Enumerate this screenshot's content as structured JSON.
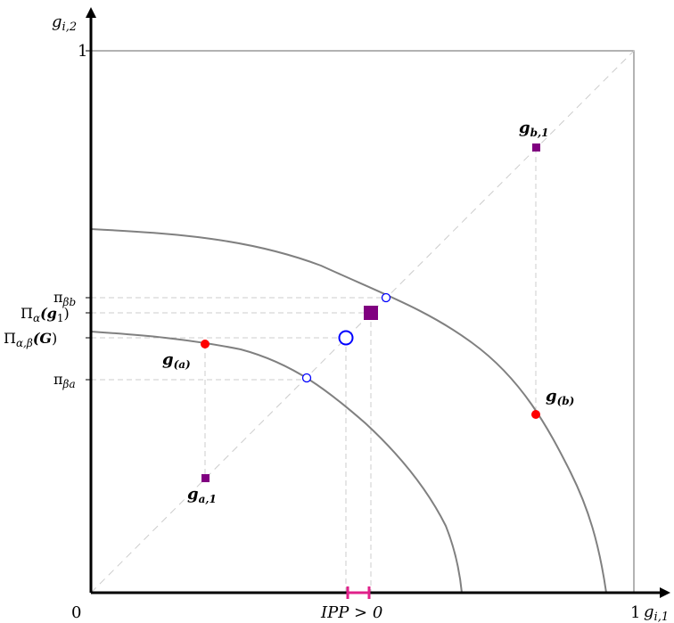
{
  "axes": {
    "x_label_var": "g",
    "x_label_sub": "i,1",
    "y_label_var": "g",
    "y_label_sub": "i,2",
    "origin": "0",
    "x_one": "1",
    "y_one": "1",
    "ipp_label": "IPP > 0"
  },
  "y_ticks": {
    "pi_beta_b": {
      "base": "π",
      "sub": "βb"
    },
    "pi_alpha_g1": {
      "text": "Π",
      "sub": "α",
      "arg": "(g",
      "arg_sub": "1",
      "close": ")"
    },
    "pi_alpha_beta_G": {
      "text": "Π",
      "sub": "α,β",
      "arg": "(G",
      "close": ")"
    },
    "pi_beta_a": {
      "base": "π",
      "sub": "βa"
    }
  },
  "points": {
    "g_b1": {
      "var": "g",
      "sub": "b,1"
    },
    "g_a1": {
      "var": "g",
      "sub": "a,1"
    },
    "g_a": {
      "var": "g",
      "sub": "(a)"
    },
    "g_b": {
      "var": "g",
      "sub": "(b)"
    }
  },
  "colors": {
    "axis": "#000000",
    "curve": "#808080",
    "frame": "#808080",
    "guide": "#cccccc",
    "red_point": "#ff0000",
    "purple": "#800080",
    "blue_open": "#0000ff",
    "ipp_bar": "#e0218a"
  }
}
